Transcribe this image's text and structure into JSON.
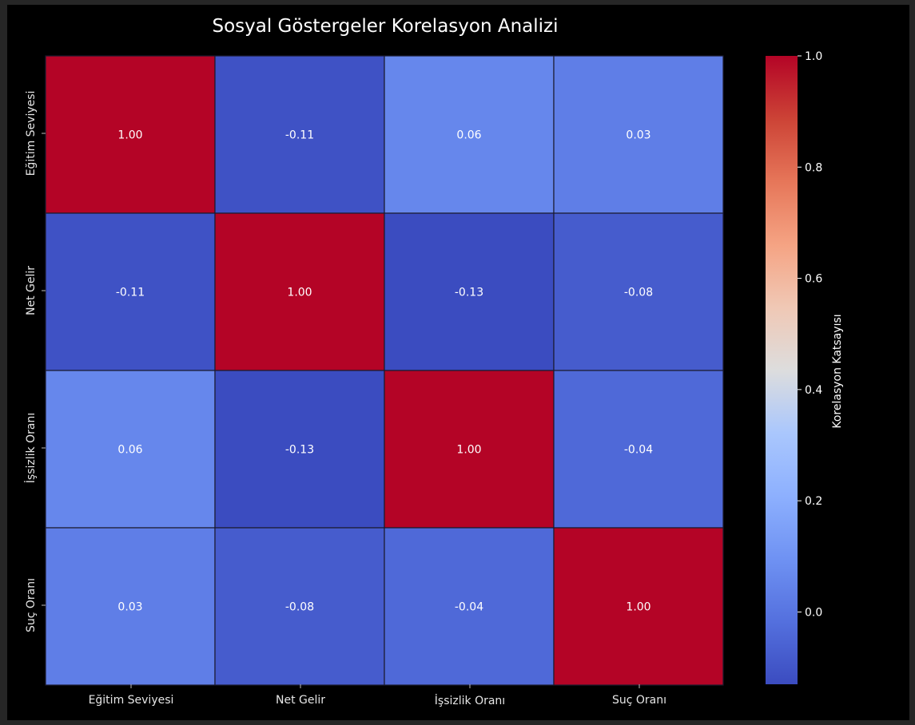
{
  "chart_data": {
    "type": "heatmap",
    "title": "Sosyal Göstergeler Korelasyon Analizi",
    "row_labels": [
      "Eğitim Seviyesi",
      "Net Gelir",
      "İşsizlik Oranı",
      "Suç Oranı"
    ],
    "col_labels": [
      "Eğitim Seviyesi",
      "Net Gelir",
      "İşsizlik Oranı",
      "Suç Oranı"
    ],
    "values": [
      [
        1.0,
        -0.11,
        0.06,
        0.03
      ],
      [
        -0.11,
        1.0,
        -0.13,
        -0.08
      ],
      [
        0.06,
        -0.13,
        1.0,
        -0.04
      ],
      [
        0.03,
        -0.08,
        -0.04,
        1.0
      ]
    ],
    "value_format": "2 decimals",
    "colormap": "coolwarm",
    "colorbar": {
      "label": "Korelasyon Katsayısı",
      "min": -0.13,
      "max": 1.0,
      "ticks": [
        0.0,
        0.2,
        0.4,
        0.6,
        0.8,
        1.0
      ],
      "tick_labels": [
        "0.0",
        "0.2",
        "0.4",
        "0.6",
        "0.8",
        "1.0"
      ]
    },
    "colors": {
      "background": "#000000",
      "text": "#ffffff",
      "tick_text": "#e6e6e6",
      "cell_border": "#1a1a2e"
    }
  }
}
